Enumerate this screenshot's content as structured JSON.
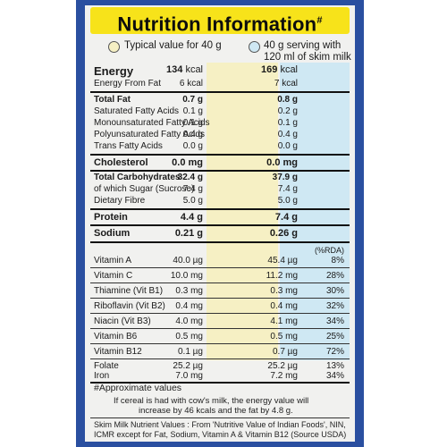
{
  "title": "Nutrition Information",
  "title_mark": "#",
  "legend": {
    "typical": "Typical value for 40 g",
    "serving_line1": "40 g serving with",
    "serving_line2": "120 ml of skim milk",
    "color_typical": "#f6f0c4",
    "color_serving": "#cfe8f3"
  },
  "energy": {
    "label": "Energy",
    "fat_label": "Energy From Fat",
    "v1": "134",
    "v1_unit": "kcal",
    "v2": "169",
    "v2_unit": "kcal",
    "fat_v1": "6 kcal",
    "fat_v2": "7 kcal"
  },
  "fat": {
    "rows": [
      {
        "label": "Total Fat",
        "v1": "0.7 g",
        "v2": "0.8 g"
      },
      {
        "label": "Saturated Fatty Acids",
        "v1": "0.1 g",
        "v2": "0.2 g"
      },
      {
        "label": "Monounsaturated Fatty Acids",
        "v1": "0.1 g",
        "v2": "0.1 g"
      },
      {
        "label": "Polyunsaturated Fatty Acids",
        "v1": "0.4 g",
        "v2": "0.4 g"
      },
      {
        "label": "Trans Fatty Acids",
        "v1": "0.0 g",
        "v2": "0.0 g"
      }
    ]
  },
  "cholesterol": {
    "label": "Cholesterol",
    "v1": "0.0 mg",
    "v2": "0.0 mg"
  },
  "carbs": {
    "rows": [
      {
        "label": "Total Carbohydrates",
        "v1": "32.4 g",
        "v2": "37.9 g"
      },
      {
        "label": "of which Sugar (Sucrose)",
        "v1": "7.4 g",
        "v2": "7.4 g"
      },
      {
        "label": "Dietary Fibre",
        "v1": "5.0 g",
        "v2": "5.0 g"
      }
    ]
  },
  "protein": {
    "label": "Protein",
    "v1": "4.4 g",
    "v2": "7.4 g"
  },
  "sodium": {
    "label": "Sodium",
    "v1": "0.21 g",
    "v2": "0.26 g"
  },
  "rda_header": "(%RDA)",
  "vitamins": [
    {
      "label": "Vitamin A",
      "v1": "40.0 µg",
      "v2": "45.4 µg",
      "pct": "8%"
    },
    {
      "label": "Vitamin C",
      "v1": "10.0 mg",
      "v2": "11.2 mg",
      "pct": "28%"
    },
    {
      "label": "Thiamine (Vit B1)",
      "v1": "0.3 mg",
      "v2": "0.3 mg",
      "pct": "30%"
    },
    {
      "label": "Riboflavin (Vit B2)",
      "v1": "0.4 mg",
      "v2": "0.4 mg",
      "pct": "32%"
    },
    {
      "label": "Niacin (Vit B3)",
      "v1": "4.0 mg",
      "v2": "4.1 mg",
      "pct": "34%"
    },
    {
      "label": "Vitamin B6",
      "v1": "0.5 mg",
      "v2": "0.5 mg",
      "pct": "25%"
    },
    {
      "label": "Vitamin B12",
      "v1": "0.1 µg",
      "v2": "0.7 µg",
      "pct": "72%"
    },
    {
      "label": "Folate",
      "v1": "25.2 µg",
      "v2": "25.2 µg",
      "pct": "13%"
    },
    {
      "label": "Iron",
      "v1": "7.0 mg",
      "v2": "7.2 mg",
      "pct": "34%"
    }
  ],
  "footnote": "#Approximate values",
  "note_cow_line1": "If cereal is had with cow's milk, the energy value will",
  "note_cow_line2": "increase by 46 kcals and the fat by 4.8 g.",
  "note_skim_line1": "Skim Milk Nutrient Values : From 'Nutritive Value of Indian Foods', NIN,",
  "note_skim_line2": "ICMR except for Fat, Sodium, Vitamin A & Vitamin B12 (Source USDA)"
}
